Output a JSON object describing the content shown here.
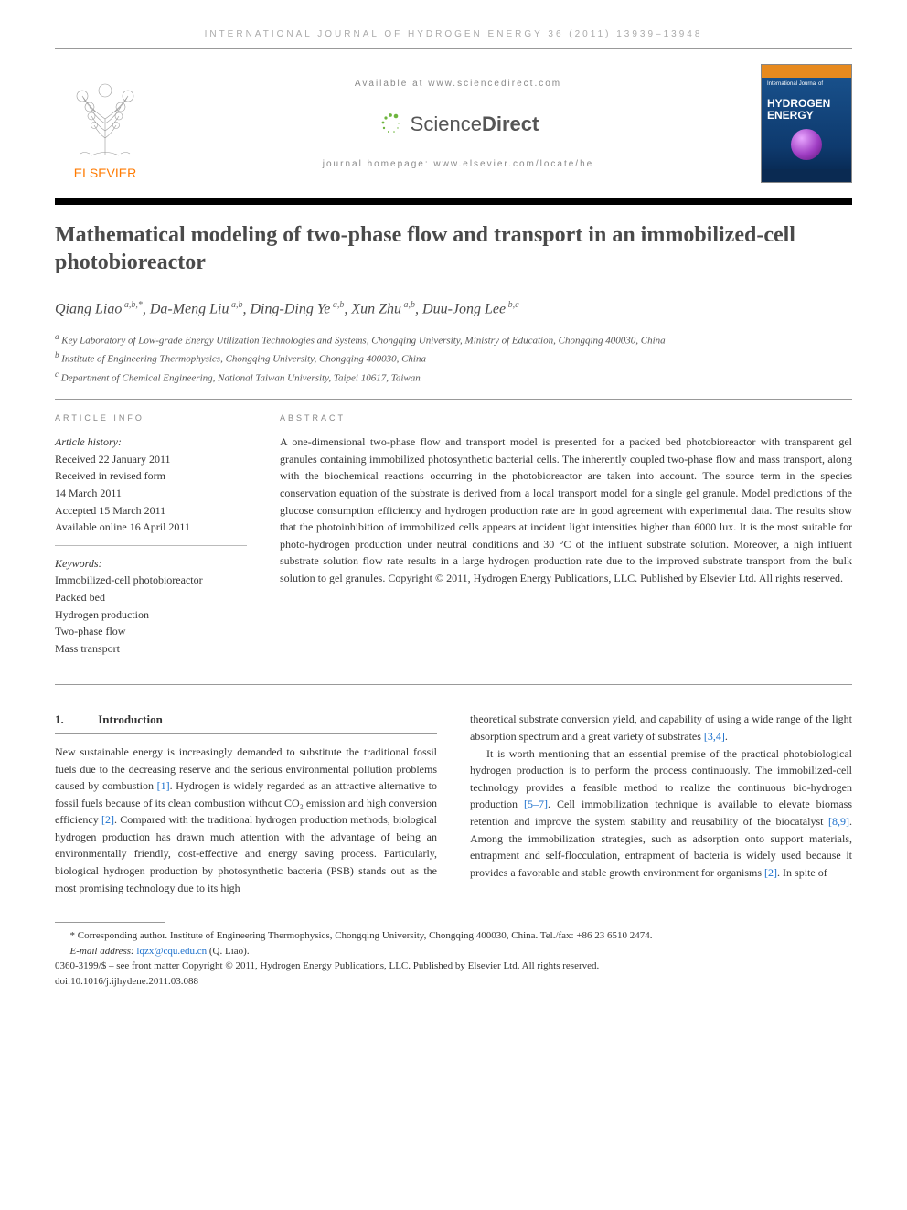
{
  "running_header": "INTERNATIONAL JOURNAL OF HYDROGEN ENERGY 36 (2011) 13939–13948",
  "masthead": {
    "available_at": "Available at www.sciencedirect.com",
    "sd_text_light": "Science",
    "sd_text_bold": "Direct",
    "journal_homepage": "journal homepage: www.elsevier.com/locate/he",
    "elsevier_label": "ELSEVIER",
    "cover_subtitle": "International Journal of",
    "cover_title_l1": "HYDROGEN",
    "cover_title_l2": "ENERGY"
  },
  "title": "Mathematical modeling of two-phase flow and transport in an immobilized-cell photobioreactor",
  "authors_html": "Qiang Liao<sup> a,b,*</sup>, Da-Meng Liu<sup> a,b</sup>, Ding-Ding Ye<sup> a,b</sup>, Xun Zhu<sup> a,b</sup>, Duu-Jong Lee<sup> b,c</sup>",
  "affiliations": {
    "a": "Key Laboratory of Low-grade Energy Utilization Technologies and Systems, Chongqing University, Ministry of Education, Chongqing 400030, China",
    "b": "Institute of Engineering Thermophysics, Chongqing University, Chongqing 400030, China",
    "c": "Department of Chemical Engineering, National Taiwan University, Taipei 10617, Taiwan"
  },
  "article_info": {
    "heading": "ARTICLE INFO",
    "history_label": "Article history:",
    "received": "Received 22 January 2011",
    "revised_l1": "Received in revised form",
    "revised_l2": "14 March 2011",
    "accepted": "Accepted 15 March 2011",
    "online": "Available online 16 April 2011",
    "keywords_label": "Keywords:",
    "keywords": [
      "Immobilized-cell photobioreactor",
      "Packed bed",
      "Hydrogen production",
      "Two-phase flow",
      "Mass transport"
    ]
  },
  "abstract": {
    "heading": "ABSTRACT",
    "text": "A one-dimensional two-phase flow and transport model is presented for a packed bed photobioreactor with transparent gel granules containing immobilized photosynthetic bacterial cells. The inherently coupled two-phase flow and mass transport, along with the biochemical reactions occurring in the photobioreactor are taken into account. The source term in the species conservation equation of the substrate is derived from a local transport model for a single gel granule. Model predictions of the glucose consumption efficiency and hydrogen production rate are in good agreement with experimental data. The results show that the photoinhibition of immobilized cells appears at incident light intensities higher than 6000 lux. It is the most suitable for photo-hydrogen production under neutral conditions and 30 °C of the influent substrate solution. Moreover, a high influent substrate solution flow rate results in a large hydrogen production rate due to the improved substrate transport from the bulk solution to gel granules.",
    "copyright": "Copyright © 2011, Hydrogen Energy Publications, LLC. Published by Elsevier Ltd. All rights reserved."
  },
  "intro": {
    "num": "1.",
    "title": "Introduction",
    "col1": "New sustainable energy is increasingly demanded to substitute the traditional fossil fuels due to the decreasing reserve and the serious environmental pollution problems caused by combustion [1]. Hydrogen is widely regarded as an attractive alternative to fossil fuels because of its clean combustion without CO₂ emission and high conversion efficiency [2]. Compared with the traditional hydrogen production methods, biological hydrogen production has drawn much attention with the advantage of being an environmentally friendly, cost-effective and energy saving process. Particularly, biological hydrogen production by photosynthetic bacteria (PSB) stands out as the most promising technology due to its high",
    "col2_p1": "theoretical substrate conversion yield, and capability of using a wide range of the light absorption spectrum and a great variety of substrates [3,4].",
    "col2_p2": "It is worth mentioning that an essential premise of the practical photobiological hydrogen production is to perform the process continuously. The immobilized-cell technology provides a feasible method to realize the continuous bio-hydrogen production [5–7]. Cell immobilization technique is available to elevate biomass retention and improve the system stability and reusability of the biocatalyst [8,9]. Among the immobilization strategies, such as adsorption onto support materials, entrapment and self-flocculation, entrapment of bacteria is widely used because it provides a favorable and stable growth environment for organisms [2]. In spite of"
  },
  "footnotes": {
    "corresponding": "* Corresponding author. Institute of Engineering Thermophysics, Chongqing University, Chongqing 400030, China. Tel./fax: +86 23 6510 2474.",
    "email_label": "E-mail address:",
    "email": "lqzx@cqu.edu.cn",
    "email_name": "(Q. Liao).",
    "issn": "0360-3199/$ – see front matter Copyright © 2011, Hydrogen Energy Publications, LLC. Published by Elsevier Ltd. All rights reserved.",
    "doi": "doi:10.1016/j.ijhydene.2011.03.088"
  },
  "colors": {
    "link": "#1a6fcc",
    "elsevier_orange": "#ff7a00",
    "heading_gray": "#4a4a4a"
  }
}
